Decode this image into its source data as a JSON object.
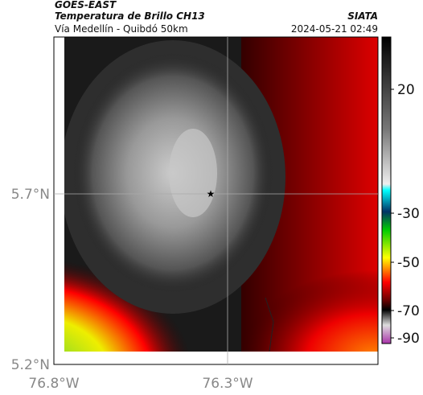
{
  "header": {
    "product": "GOES-EAST",
    "title": "Temperatura de Brillo CH13",
    "source": "SIATA",
    "subtitle": "Vía Medellín - Quibdó 50km",
    "timestamp": "2024-05-21 02:49"
  },
  "map": {
    "lat_labels": [
      "5.7°N",
      "5.2°N"
    ],
    "lon_labels": [
      "76.8°W",
      "76.3°W"
    ]
  },
  "colorbar": {
    "labels": [
      20,
      -30,
      -50,
      -70,
      -90
    ]
  }
}
